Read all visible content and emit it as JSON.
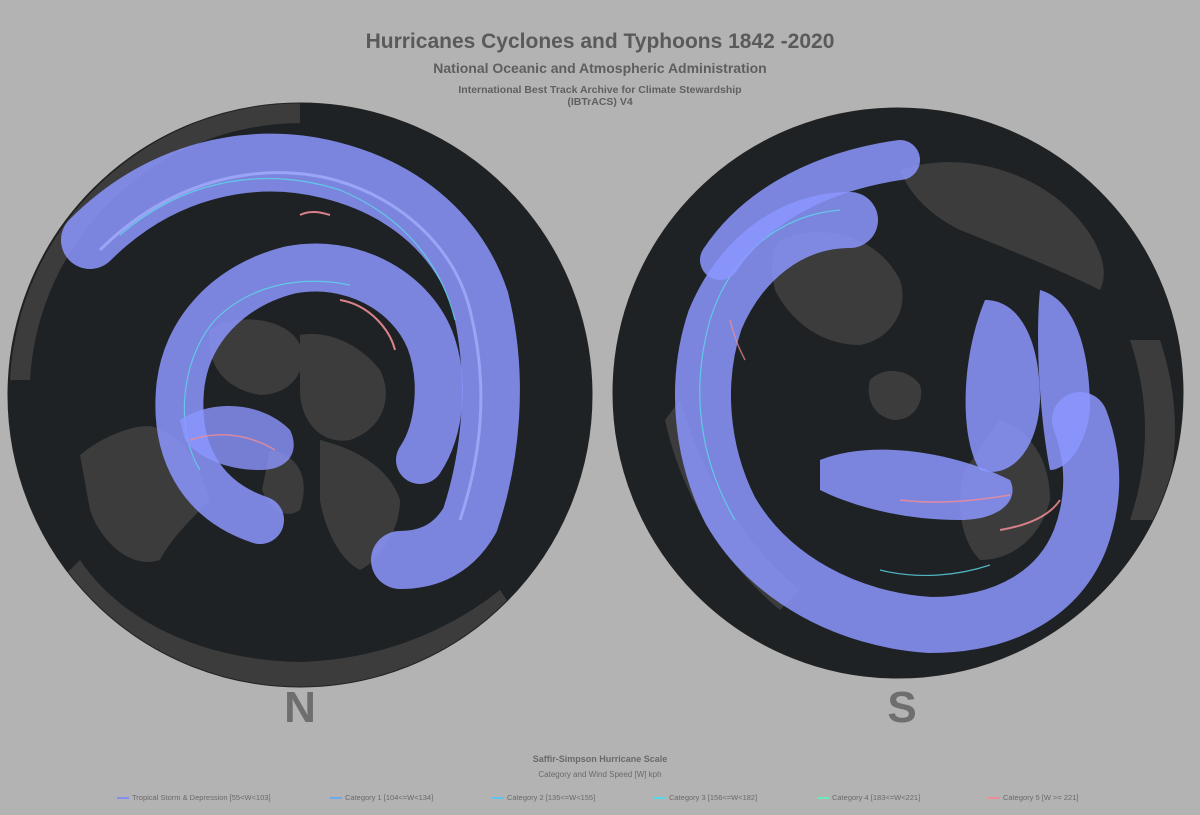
{
  "header": {
    "title": "Hurricanes Cyclones and Typhoons 1842 -2020",
    "subtitle": "National Oceanic and Atmospheric Administration",
    "source_line1": "International Best Track Archive for Climate Stewardship",
    "source_line2": "(IBTrACS) V4"
  },
  "hemispheres": {
    "north_label": "N",
    "south_label": "S"
  },
  "legend": {
    "title": "Saffir-Simpson Hurricane Scale",
    "subtitle": "Category and Wind Speed [W] kph",
    "items": [
      {
        "label": "Tropical Storm & Depression [55<W<103]",
        "color": "#7f8ff5"
      },
      {
        "label": "Category 1 [104<=W<134]",
        "color": "#6fa8f0"
      },
      {
        "label": "Category 2 [135<=W<155]",
        "color": "#5ec3ee"
      },
      {
        "label": "Category 3 [156<=W<182]",
        "color": "#52d8e8"
      },
      {
        "label": "Category 4 [183<=W<221]",
        "color": "#6ee8b8"
      },
      {
        "label": "Category 5 [W >= 221]",
        "color": "#f08c96"
      }
    ]
  },
  "colors": {
    "background": "#b3b3b3",
    "ocean": "#1e2224",
    "land": "#3c3c3c",
    "track": "#8c96ff"
  }
}
